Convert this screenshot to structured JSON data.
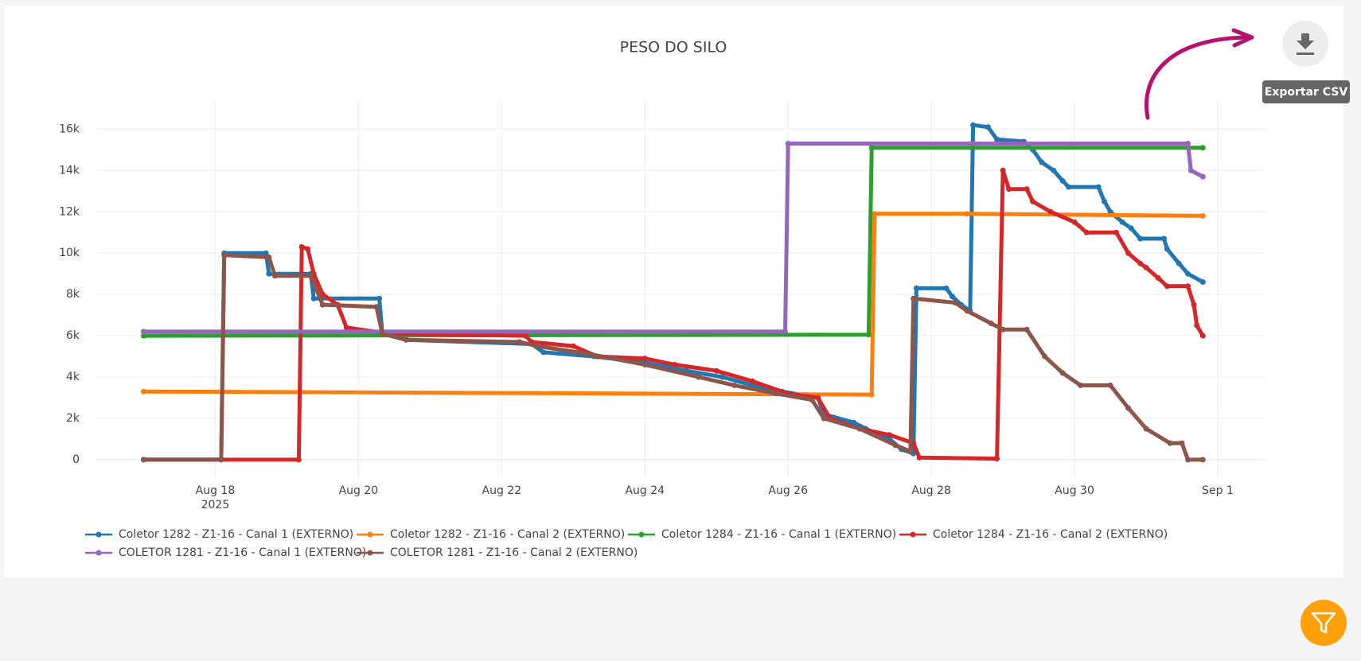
{
  "toolbar": {
    "tooltip": "Exportar CSV"
  },
  "chart_data": {
    "type": "line",
    "title": "PESO DO SILO",
    "grid": true,
    "xlim": [
      "2025-08-16 08:00",
      "2025-09-01 16:00"
    ],
    "xticks": [
      {
        "value": "2025-08-18",
        "label": "Aug 18\n2025"
      },
      {
        "value": "2025-08-20",
        "label": "Aug 20"
      },
      {
        "value": "2025-08-22",
        "label": "Aug 22"
      },
      {
        "value": "2025-08-24",
        "label": "Aug 24"
      },
      {
        "value": "2025-08-26",
        "label": "Aug 26"
      },
      {
        "value": "2025-08-28",
        "label": "Aug 28"
      },
      {
        "value": "2025-08-30",
        "label": "Aug 30"
      },
      {
        "value": "2025-09-01",
        "label": "Sep 1"
      }
    ],
    "ylim": [
      -850,
      17400
    ],
    "yticks": [
      0,
      {
        "value": 2000,
        "label": "2k"
      },
      {
        "value": 4000,
        "label": "4k"
      },
      {
        "value": 6000,
        "label": "6k"
      },
      {
        "value": 8000,
        "label": "8k"
      },
      {
        "value": 10000,
        "label": "10k"
      },
      {
        "value": 12000,
        "label": "12k"
      },
      {
        "value": 14000,
        "label": "14k"
      },
      {
        "value": 16000,
        "label": "16k"
      }
    ],
    "series": [
      {
        "name": "Coletor 1282 - Z1-16 - Canal 1 (EXTERNO)",
        "color": "#1f77b4",
        "x": [
          "2025-08-17 00:00",
          "2025-08-18 02:00",
          "2025-08-18 03:00",
          "2025-08-18 17:00",
          "2025-08-18 18:00",
          "2025-08-19 08:00",
          "2025-08-19 09:00",
          "2025-08-20 07:00",
          "2025-08-20 08:00",
          "2025-08-20 16:00",
          "2025-08-22 10:00",
          "2025-08-22 14:00",
          "2025-08-23 07:00",
          "2025-08-24 00:00",
          "2025-08-24 14:00",
          "2025-08-25 02:00",
          "2025-08-25 12:00",
          "2025-08-25 22:00",
          "2025-08-26 10:00",
          "2025-08-26 12:00",
          "2025-08-26 22:00",
          "2025-08-27 02:00",
          "2025-08-27 10:00",
          "2025-08-27 14:00",
          "2025-08-27 18:00",
          "2025-08-27 19:00",
          "2025-08-28 05:00",
          "2025-08-28 07:00",
          "2025-08-28 10:00",
          "2025-08-28 13:00",
          "2025-08-28 14:00",
          "2025-08-28 19:00",
          "2025-08-28 22:00",
          "2025-08-29 07:00",
          "2025-08-29 10:00",
          "2025-08-29 13:00",
          "2025-08-29 17:00",
          "2025-08-29 20:00",
          "2025-08-29 22:00",
          "2025-08-30 08:00",
          "2025-08-30 10:00",
          "2025-08-30 12:00",
          "2025-08-30 16:00",
          "2025-08-30 19:00",
          "2025-08-30 22:00",
          "2025-08-31 06:00",
          "2025-08-31 07:00",
          "2025-08-31 11:00",
          "2025-08-31 14:00",
          "2025-08-31 19:00"
        ],
        "values": [
          0,
          0,
          10000,
          10000,
          9000,
          9000,
          7800,
          7800,
          6100,
          5800,
          5600,
          5200,
          5000,
          4700,
          4300,
          4000,
          3600,
          3300,
          3000,
          2200,
          1800,
          1500,
          1000,
          500,
          300,
          8300,
          8300,
          7900,
          7500,
          7200,
          16200,
          16100,
          15500,
          15400,
          15000,
          14400,
          14000,
          13500,
          13200,
          13200,
          12500,
          12000,
          11500,
          11200,
          10700,
          10700,
          10200,
          9500,
          9000,
          8600
        ]
      },
      {
        "name": "Coletor 1282 - Z1-16 - Canal 2 (EXTERNO)",
        "color": "#ff7f0e",
        "x": [
          "2025-08-17 00:00",
          "2025-08-27 04:00",
          "2025-08-27 05:00",
          "2025-08-28 12:00",
          "2025-08-31 19:00"
        ],
        "values": [
          3300,
          3150,
          11900,
          11900,
          11800
        ]
      },
      {
        "name": "Coletor 1284 - Z1-16 - Canal 1 (EXTERNO)",
        "color": "#2ca02c",
        "x": [
          "2025-08-17 00:00",
          "2025-08-27 03:00",
          "2025-08-27 04:00",
          "2025-08-31 19:00"
        ],
        "values": [
          6000,
          6050,
          15100,
          15100
        ]
      },
      {
        "name": "Coletor 1284 - Z1-16 - Canal 2 (EXTERNO)",
        "color": "#d62728",
        "x": [
          "2025-08-17 00:00",
          "2025-08-19 04:00",
          "2025-08-19 05:00",
          "2025-08-19 07:00",
          "2025-08-19 09:00",
          "2025-08-19 12:00",
          "2025-08-19 17:00",
          "2025-08-19 20:00",
          "2025-08-20 10:00",
          "2025-08-22 08:00",
          "2025-08-22 10:00",
          "2025-08-23 00:00",
          "2025-08-23 08:00",
          "2025-08-24 00:00",
          "2025-08-24 10:00",
          "2025-08-25 00:00",
          "2025-08-25 12:00",
          "2025-08-26 00:00",
          "2025-08-26 10:00",
          "2025-08-26 14:00",
          "2025-08-27 00:00",
          "2025-08-27 10:00",
          "2025-08-27 18:00",
          "2025-08-27 20:00",
          "2025-08-28 22:00",
          "2025-08-29 00:00",
          "2025-08-29 02:00",
          "2025-08-29 08:00",
          "2025-08-29 10:00",
          "2025-08-29 16:00",
          "2025-08-30 00:00",
          "2025-08-30 04:00",
          "2025-08-30 14:00",
          "2025-08-30 18:00",
          "2025-08-30 22:00",
          "2025-08-31 00:00",
          "2025-08-31 04:00",
          "2025-08-31 07:00",
          "2025-08-31 14:00",
          "2025-08-31 16:00",
          "2025-08-31 17:00",
          "2025-08-31 19:00"
        ],
        "values": [
          0,
          0,
          10300,
          10200,
          9000,
          8000,
          7500,
          6400,
          6100,
          6000,
          5700,
          5500,
          5000,
          4900,
          4600,
          4300,
          3800,
          3200,
          3000,
          2000,
          1500,
          1200,
          800,
          100,
          50,
          14000,
          13100,
          13100,
          12500,
          12000,
          11500,
          11000,
          11000,
          10000,
          9500,
          9300,
          8800,
          8400,
          8400,
          7500,
          6500,
          6000
        ]
      },
      {
        "name": "COLETOR 1281 - Z1-16 - Canal 1 (EXTERNO)",
        "color": "#9467bd",
        "x": [
          "2025-08-17 00:00",
          "2025-08-25 23:00",
          "2025-08-26 00:00",
          "2025-08-31 14:00",
          "2025-08-31 15:00",
          "2025-08-31 19:00"
        ],
        "values": [
          6200,
          6200,
          15300,
          15300,
          14000,
          13700
        ]
      },
      {
        "name": "COLETOR 1281 - Z1-16 - Canal 2 (EXTERNO)",
        "color": "#8c564b",
        "x": [
          "2025-08-17 00:00",
          "2025-08-18 02:00",
          "2025-08-18 03:00",
          "2025-08-18 18:00",
          "2025-08-18 20:00",
          "2025-08-19 08:00",
          "2025-08-19 12:00",
          "2025-08-20 06:00",
          "2025-08-20 08:00",
          "2025-08-20 16:00",
          "2025-08-22 06:00",
          "2025-08-22 12:00",
          "2025-08-23 06:00",
          "2025-08-24 00:00",
          "2025-08-24 18:00",
          "2025-08-25 06:00",
          "2025-08-25 20:00",
          "2025-08-26 08:00",
          "2025-08-26 12:00",
          "2025-08-27 00:00",
          "2025-08-27 12:00",
          "2025-08-27 17:00",
          "2025-08-27 18:00",
          "2025-08-28 08:00",
          "2025-08-28 12:00",
          "2025-08-28 20:00",
          "2025-08-29 00:00",
          "2025-08-29 08:00",
          "2025-08-29 14:00",
          "2025-08-29 20:00",
          "2025-08-30 02:00",
          "2025-08-30 12:00",
          "2025-08-30 18:00",
          "2025-08-31 00:00",
          "2025-08-31 08:00",
          "2025-08-31 12:00",
          "2025-08-31 14:00",
          "2025-08-31 19:00"
        ],
        "values": [
          0,
          0,
          9900,
          9800,
          8900,
          8900,
          7500,
          7400,
          6100,
          5800,
          5700,
          5500,
          5100,
          4600,
          4000,
          3600,
          3200,
          2900,
          2000,
          1500,
          700,
          400,
          7800,
          7600,
          7200,
          6600,
          6300,
          6300,
          5000,
          4200,
          3600,
          3600,
          2500,
          1500,
          800,
          800,
          0,
          0
        ]
      }
    ]
  }
}
